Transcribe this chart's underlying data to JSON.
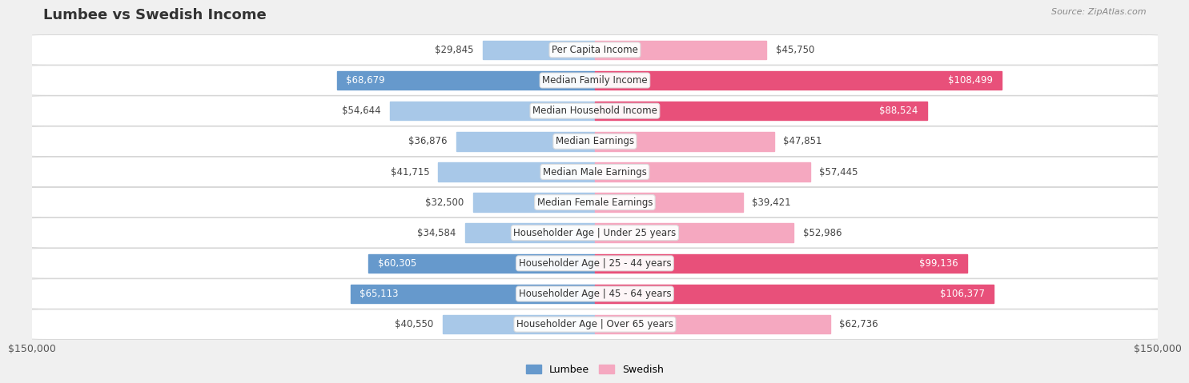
{
  "title": "Lumbee vs Swedish Income",
  "source": "Source: ZipAtlas.com",
  "categories": [
    "Per Capita Income",
    "Median Family Income",
    "Median Household Income",
    "Median Earnings",
    "Median Male Earnings",
    "Median Female Earnings",
    "Householder Age | Under 25 years",
    "Householder Age | 25 - 44 years",
    "Householder Age | 45 - 64 years",
    "Householder Age | Over 65 years"
  ],
  "lumbee_values": [
    29845,
    68679,
    54644,
    36876,
    41715,
    32500,
    34584,
    60305,
    65113,
    40550
  ],
  "swedish_values": [
    45750,
    108499,
    88524,
    47851,
    57445,
    39421,
    52986,
    99136,
    106377,
    62736
  ],
  "lumbee_labels": [
    "$29,845",
    "$68,679",
    "$54,644",
    "$36,876",
    "$41,715",
    "$32,500",
    "$34,584",
    "$60,305",
    "$65,113",
    "$40,550"
  ],
  "swedish_labels": [
    "$45,750",
    "$108,499",
    "$88,524",
    "$47,851",
    "$57,445",
    "$39,421",
    "$52,986",
    "$99,136",
    "$106,377",
    "$62,736"
  ],
  "lumbee_color_light": "#a8c8e8",
  "lumbee_color_dark": "#6699cc",
  "swedish_color_light": "#f5a8c0",
  "swedish_color_dark": "#e8507a",
  "max_value": 150000,
  "background_color": "#f0f0f0",
  "row_bg_color": "#ffffff",
  "title_fontsize": 13,
  "label_fontsize": 8.5,
  "category_fontsize": 8.5,
  "legend_labels": [
    "Lumbee",
    "Swedish"
  ],
  "lumbee_legend_color": "#6699cc",
  "swedish_legend_color": "#f5a8c0",
  "lumbee_dark_threshold": 55000,
  "swedish_dark_threshold": 80000
}
